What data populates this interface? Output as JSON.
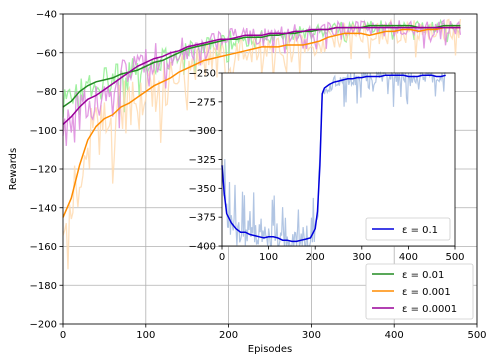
{
  "chart_data": [
    {
      "type": "line",
      "xlabel": "Episodes",
      "ylabel": "Rewards",
      "xlim": [
        0,
        500
      ],
      "ylim": [
        -200,
        -40
      ],
      "xticks": [
        0,
        100,
        200,
        300,
        400,
        500
      ],
      "yticks": [
        -200,
        -180,
        -160,
        -140,
        -120,
        -100,
        -80,
        -60,
        -40
      ],
      "grid": true,
      "legend": "lower-right",
      "series": [
        {
          "name": "ε = 0.01",
          "color": "#228b22",
          "raw_color": "#90ee90",
          "x": [
            0,
            10,
            20,
            30,
            40,
            50,
            60,
            70,
            80,
            90,
            100,
            110,
            120,
            130,
            140,
            150,
            160,
            170,
            180,
            190,
            200,
            210,
            220,
            230,
            240,
            250,
            260,
            270,
            280,
            290,
            300,
            310,
            320,
            330,
            340,
            350,
            360,
            370,
            380,
            390,
            400,
            410,
            420,
            430,
            440,
            450,
            460,
            470,
            480
          ],
          "values": [
            -88,
            -85,
            -80,
            -77,
            -75,
            -74,
            -73,
            -71,
            -70,
            -69,
            -67,
            -65,
            -64,
            -62,
            -60,
            -58,
            -57,
            -56,
            -55,
            -54,
            -53,
            -53,
            -52,
            -52,
            -52,
            -51,
            -51,
            -50,
            -50,
            -49,
            -49,
            -48,
            -48,
            -47,
            -47,
            -47,
            -47,
            -46,
            -46,
            -46,
            -46,
            -46,
            -46,
            -47,
            -47,
            -47,
            -46,
            -46,
            -46
          ]
        },
        {
          "name": "ε = 0.001",
          "color": "#ff8c00",
          "raw_color": "#ffdab0",
          "x": [
            0,
            10,
            20,
            30,
            40,
            50,
            60,
            70,
            80,
            90,
            100,
            110,
            120,
            130,
            140,
            150,
            160,
            170,
            180,
            190,
            200,
            210,
            220,
            230,
            240,
            250,
            260,
            270,
            280,
            290,
            300,
            310,
            320,
            330,
            340,
            350,
            360,
            370,
            380,
            390,
            400,
            410,
            420,
            430,
            440,
            450,
            460,
            470,
            480
          ],
          "values": [
            -145,
            -135,
            -118,
            -105,
            -98,
            -94,
            -92,
            -88,
            -86,
            -83,
            -80,
            -77,
            -75,
            -73,
            -70,
            -68,
            -66,
            -64,
            -63,
            -62,
            -61,
            -60,
            -59,
            -58,
            -57,
            -57,
            -57,
            -56,
            -56,
            -56,
            -55,
            -54,
            -52,
            -51,
            -50,
            -50,
            -50,
            -51,
            -50,
            -49,
            -49,
            -48,
            -48,
            -49,
            -48,
            -48,
            -47,
            -47,
            -47
          ]
        },
        {
          "name": "ε = 0.0001",
          "color": "#990099",
          "raw_color": "#dd88dd",
          "x": [
            0,
            10,
            20,
            30,
            40,
            50,
            60,
            70,
            80,
            90,
            100,
            110,
            120,
            130,
            140,
            150,
            160,
            170,
            180,
            190,
            200,
            210,
            220,
            230,
            240,
            250,
            260,
            270,
            280,
            290,
            300,
            310,
            320,
            330,
            340,
            350,
            360,
            370,
            380,
            390,
            400,
            410,
            420,
            430,
            440,
            450,
            460,
            470,
            480
          ],
          "values": [
            -97,
            -93,
            -88,
            -84,
            -82,
            -79,
            -76,
            -73,
            -70,
            -67,
            -65,
            -63,
            -62,
            -60,
            -59,
            -57,
            -56,
            -55,
            -54,
            -53,
            -53,
            -52,
            -51,
            -51,
            -51,
            -50,
            -50,
            -50,
            -49,
            -49,
            -48,
            -48,
            -48,
            -47,
            -47,
            -47,
            -47,
            -47,
            -47,
            -47,
            -47,
            -47,
            -47,
            -47,
            -47,
            -47,
            -47,
            -47,
            -47
          ]
        }
      ]
    },
    {
      "type": "line",
      "xlim": [
        0,
        500
      ],
      "ylim": [
        -400,
        -250
      ],
      "xticks": [
        0,
        100,
        200,
        300,
        400,
        500
      ],
      "yticks": [
        -400,
        -375,
        -350,
        -325,
        -300,
        -275,
        -250
      ],
      "grid": false,
      "legend": "lower-right",
      "series": [
        {
          "name": "ε = 0.1",
          "color": "#0000dd",
          "raw_color": "#a8bfe0",
          "x": [
            0,
            5,
            10,
            20,
            30,
            40,
            50,
            60,
            70,
            80,
            90,
            100,
            110,
            120,
            130,
            140,
            150,
            160,
            170,
            180,
            190,
            200,
            205,
            210,
            215,
            220,
            230,
            240,
            250,
            260,
            270,
            280,
            290,
            300,
            310,
            320,
            330,
            340,
            350,
            360,
            370,
            380,
            390,
            400,
            410,
            420,
            430,
            440,
            450,
            460,
            470,
            480
          ],
          "values": [
            -330,
            -355,
            -372,
            -380,
            -385,
            -388,
            -388,
            -390,
            -391,
            -392,
            -393,
            -392,
            -392,
            -393,
            -395,
            -395,
            -396,
            -396,
            -395,
            -394,
            -393,
            -385,
            -370,
            -330,
            -268,
            -263,
            -260,
            -258,
            -257,
            -256,
            -255,
            -255,
            -254,
            -254,
            -253,
            -253,
            -253,
            -253,
            -252,
            -252,
            -252,
            -252,
            -252,
            -253,
            -253,
            -253,
            -252,
            -252,
            -252,
            -253,
            -253,
            -252
          ]
        }
      ]
    }
  ]
}
